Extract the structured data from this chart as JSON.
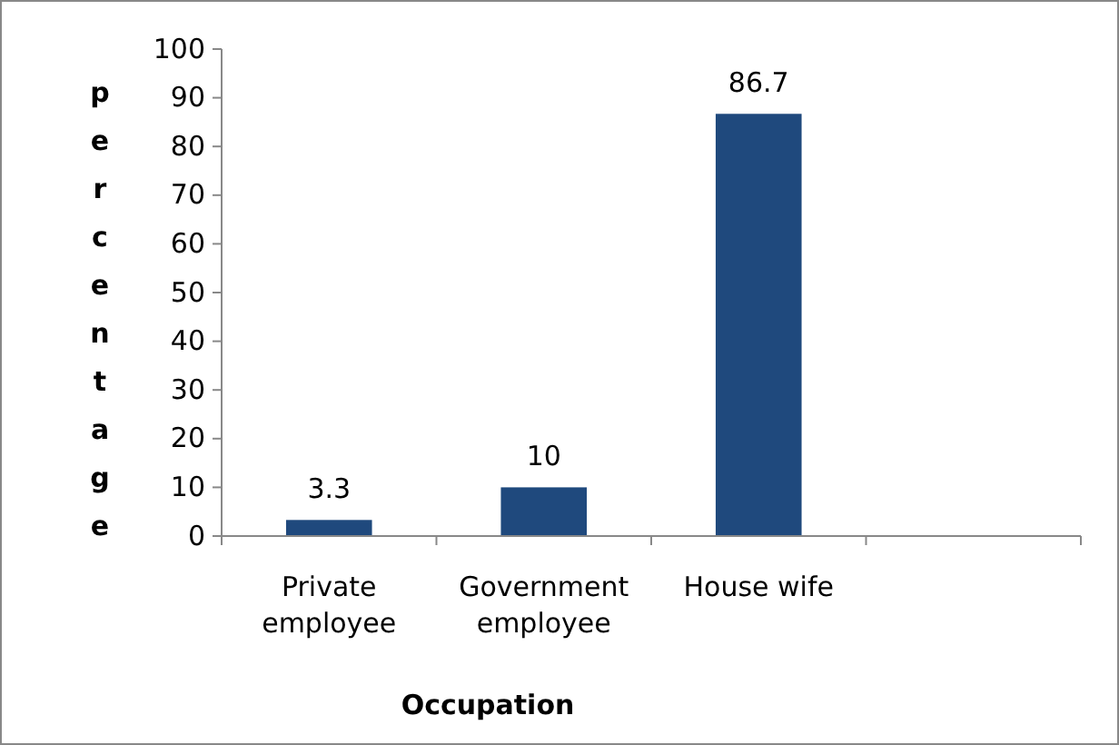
{
  "chart_data": {
    "type": "bar",
    "xlabel": "Occupation",
    "ylabel": "percentage",
    "categories": [
      "Private employee",
      "Government employee",
      "House wife",
      null
    ],
    "values": [
      3.3,
      10,
      86.7,
      null
    ],
    "color": "#1f497d",
    "ylim": [
      0,
      100
    ],
    "yticks": [
      0,
      10,
      20,
      30,
      40,
      50,
      60,
      70,
      80,
      90,
      100
    ],
    "data_labels": true,
    "grid": false
  }
}
